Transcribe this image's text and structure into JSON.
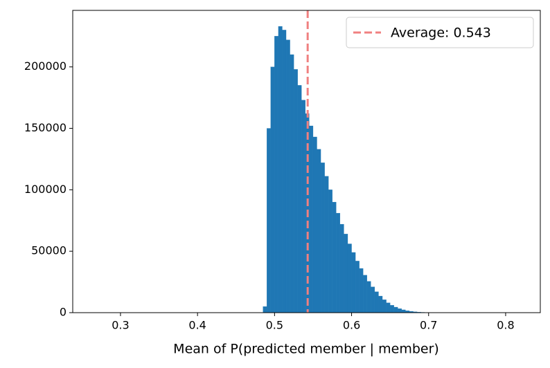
{
  "chart_data": {
    "type": "histogram",
    "xlabel": "Mean of P(predicted member | member)",
    "bins": [
      0.48,
      0.485,
      0.49,
      0.495,
      0.5,
      0.505,
      0.51,
      0.515,
      0.52,
      0.525,
      0.53,
      0.535,
      0.54,
      0.545,
      0.55,
      0.555,
      0.56,
      0.565,
      0.57,
      0.575,
      0.58,
      0.585,
      0.59,
      0.595,
      0.6,
      0.605,
      0.61,
      0.615,
      0.62,
      0.625,
      0.63,
      0.635,
      0.64,
      0.645,
      0.65,
      0.655,
      0.66,
      0.665,
      0.67,
      0.675,
      0.68,
      0.685,
      0.69,
      0.695,
      0.7,
      0.705,
      0.71
    ],
    "values": [
      0,
      5000,
      150000,
      200000,
      225000,
      233000,
      230000,
      222000,
      210000,
      198000,
      185000,
      173000,
      162000,
      152000,
      143000,
      133000,
      122000,
      111000,
      100000,
      90000,
      81000,
      72000,
      64000,
      56000,
      49000,
      42000,
      36000,
      30500,
      25500,
      21000,
      17000,
      13500,
      10500,
      8000,
      6000,
      4500,
      3300,
      2300,
      1600,
      1100,
      700,
      450,
      280,
      160,
      90,
      50
    ],
    "color": "#1f77b4",
    "vline": {
      "value": 0.543,
      "label": "Average: 0.543",
      "color": "#f08080"
    },
    "legend": "upper right",
    "xlim": [
      0.238,
      0.845
    ],
    "xticks": [
      0.3,
      0.4,
      0.5,
      0.6,
      0.7,
      0.8
    ],
    "ylim": [
      0,
      246000
    ],
    "yticks": [
      0,
      50000,
      100000,
      150000,
      200000
    ]
  }
}
